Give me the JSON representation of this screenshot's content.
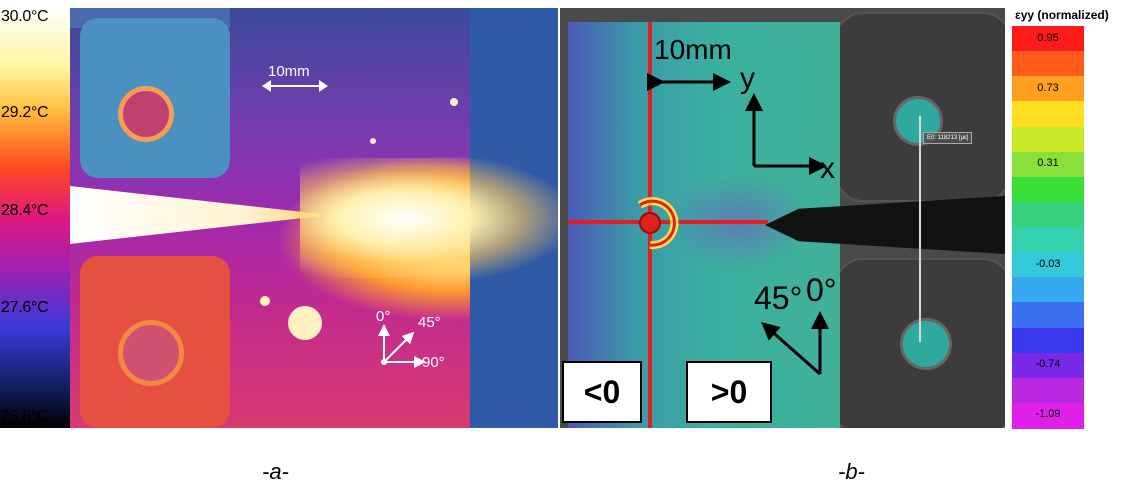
{
  "panel_a": {
    "scale": {
      "labels": [
        "30.0°C",
        "29.2°C",
        "28.4°C",
        "27.6°C",
        "26.8°C"
      ]
    },
    "scalebar_text": "10mm",
    "orientation": {
      "deg0": "0°",
      "deg45": "45°",
      "deg90": "90°"
    },
    "caption": "-a-"
  },
  "panel_b": {
    "scalebar_text": "10mm",
    "axes": {
      "y": "y",
      "x": "x"
    },
    "angles": {
      "deg45": "45°",
      "deg0": "0°"
    },
    "region_labels": {
      "negative": "<0",
      "positive": ">0"
    },
    "extensometer_tag": "E0: 118213 [µε]",
    "caption": "-b-"
  },
  "strain_bar": {
    "title": "εyy (normalized)",
    "colors": [
      "#ff1a1a",
      "#ff5a1a",
      "#ffa020",
      "#ffe020",
      "#c8e82a",
      "#8ae03a",
      "#3ae03a",
      "#3ad27a",
      "#35d2b0",
      "#35c8d8",
      "#35a8f0",
      "#3a70f0",
      "#3a3af0",
      "#7a28e8",
      "#b828e0",
      "#e020e8"
    ],
    "labels": [
      {
        "text": "0.95",
        "index": 0
      },
      {
        "text": "0.73",
        "index": 2
      },
      {
        "text": "0.31",
        "index": 5
      },
      {
        "text": "-0.03",
        "index": 9
      },
      {
        "text": "-0.74",
        "index": 13
      },
      {
        "text": "-1.09",
        "index": 15
      }
    ]
  }
}
